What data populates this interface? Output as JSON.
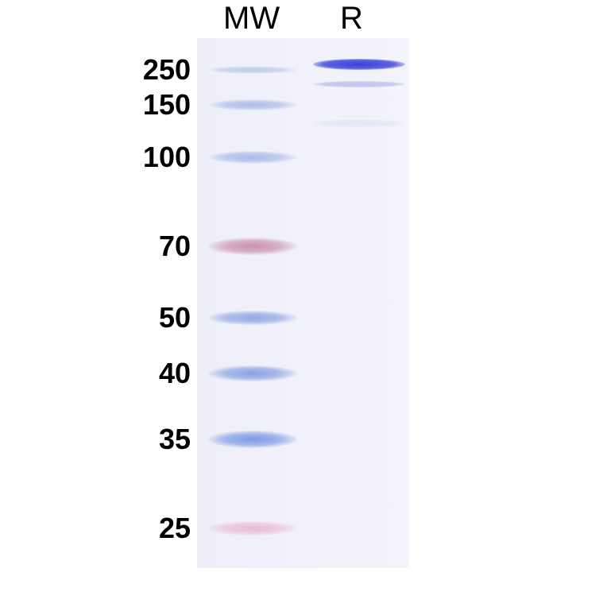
{
  "lanes": {
    "marker": "MW",
    "sample": "R"
  },
  "markers": [
    {
      "label": "250",
      "color": "#8aa4dc",
      "strength": 0.5
    },
    {
      "label": "150",
      "color": "#7d9ada",
      "strength": 0.6
    },
    {
      "label": "100",
      "color": "#7b96dc",
      "strength": 0.6
    },
    {
      "label": "70",
      "color": "#c07a9c",
      "strength": 0.8
    },
    {
      "label": "50",
      "color": "#7390dc",
      "strength": 0.75
    },
    {
      "label": "40",
      "color": "#6f8cdc",
      "strength": 0.8
    },
    {
      "label": "35",
      "color": "#6a8ae2",
      "strength": 0.85
    },
    {
      "label": "25",
      "color": "#e59ab8",
      "strength": 0.6
    }
  ],
  "sample_bands": [
    {
      "color": "#3a3fd8",
      "strength": 1.0
    },
    {
      "color": "#8c98dc",
      "strength": 0.5
    },
    {
      "color": "#c8cce8",
      "strength": 0.3
    }
  ]
}
